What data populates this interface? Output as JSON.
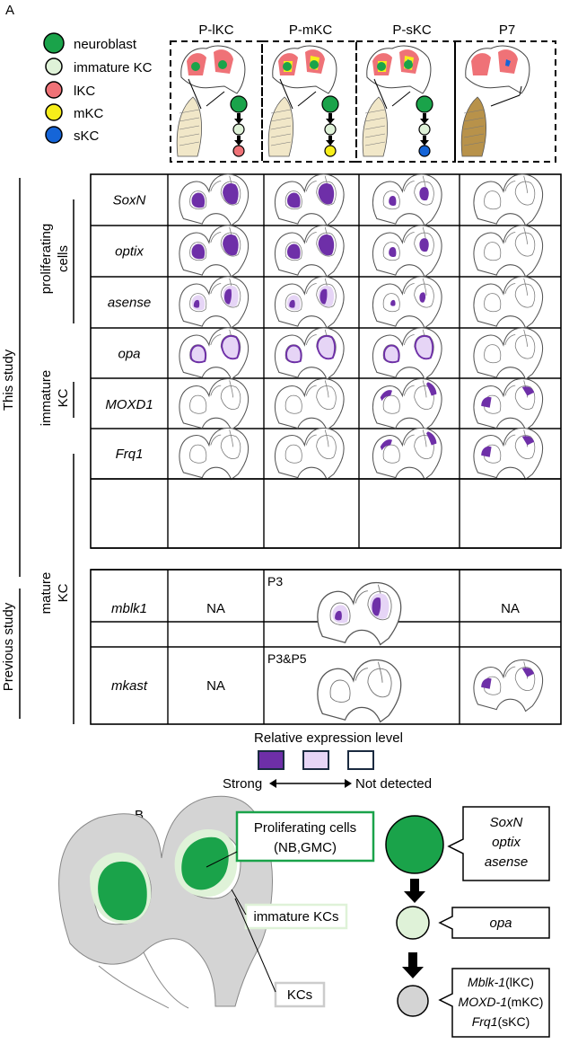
{
  "panel_a_label": "A",
  "panel_b_label": "B",
  "legend": [
    {
      "label": "neuroblast",
      "color": "#1aa34a"
    },
    {
      "label": "immature KC",
      "color": "#dff2d8"
    },
    {
      "label": "lKC",
      "color": "#ef7277"
    },
    {
      "label": "mKC",
      "color": "#f7ee1a"
    },
    {
      "label": "sKC",
      "color": "#1565d8"
    }
  ],
  "stages": [
    "P-lKC",
    "P-mKC",
    "P-sKC",
    "P7"
  ],
  "side_labels": {
    "this_study": "This study",
    "previous_study": "Previous study",
    "proliferating_1": "proliferating",
    "proliferating_2": "cells",
    "immature_1": "immature",
    "immature_2": "KC",
    "mature_1": "mature",
    "mature_2": "KC"
  },
  "genes_this_study": [
    {
      "name": "SoxN",
      "levels": [
        "strong-nb",
        "strong-nb",
        "weak-small",
        "none"
      ]
    },
    {
      "name": "optix",
      "levels": [
        "strong-nb",
        "strong-nb",
        "weak-small",
        "none"
      ]
    },
    {
      "name": "asense",
      "levels": [
        "mixed",
        "mixed",
        "small",
        "none"
      ]
    },
    {
      "name": "opa",
      "levels": [
        "ring",
        "ring",
        "ring",
        "none"
      ]
    },
    {
      "name": "MOXD1",
      "levels": [
        "none",
        "none",
        "strong-top",
        "strong-p7"
      ]
    },
    {
      "name": "Frq1",
      "levels": [
        "none",
        "none",
        "strong-top",
        "strong-p7"
      ]
    }
  ],
  "genes_previous_study": [
    {
      "name": "mblk1",
      "left": "NA",
      "middle_stage": "P3",
      "right": "NA"
    },
    {
      "name": "mkast",
      "left": "NA",
      "middle_stage": "P3&P5",
      "right": ""
    }
  ],
  "expression_legend": {
    "title": "Relative expression level",
    "strong": "Strong",
    "not_detected": "Not detected",
    "colors": [
      "#6e2fa8",
      "#e6d5f6",
      "#ffffff"
    ]
  },
  "panel_b": {
    "proliferating_label_1": "Proliferating cells",
    "proliferating_label_2": "(NB,GMC)",
    "immature_label": "immature KCs",
    "kc_label": "KCs",
    "box1_lines": [
      "SoxN",
      "optix",
      "asense"
    ],
    "box2_lines": [
      "opa"
    ],
    "box3_lines": [
      {
        "gene": "Mblk-1",
        "suffix": "(lKC)"
      },
      {
        "gene": "MOXD-1",
        "suffix": "(mKC)"
      },
      {
        "gene": "Frq1",
        "suffix": "(sKC)"
      }
    ],
    "colors": {
      "nb": "#1aa34a",
      "immature": "#dff2d8",
      "kc": "#d4d4d4"
    }
  }
}
